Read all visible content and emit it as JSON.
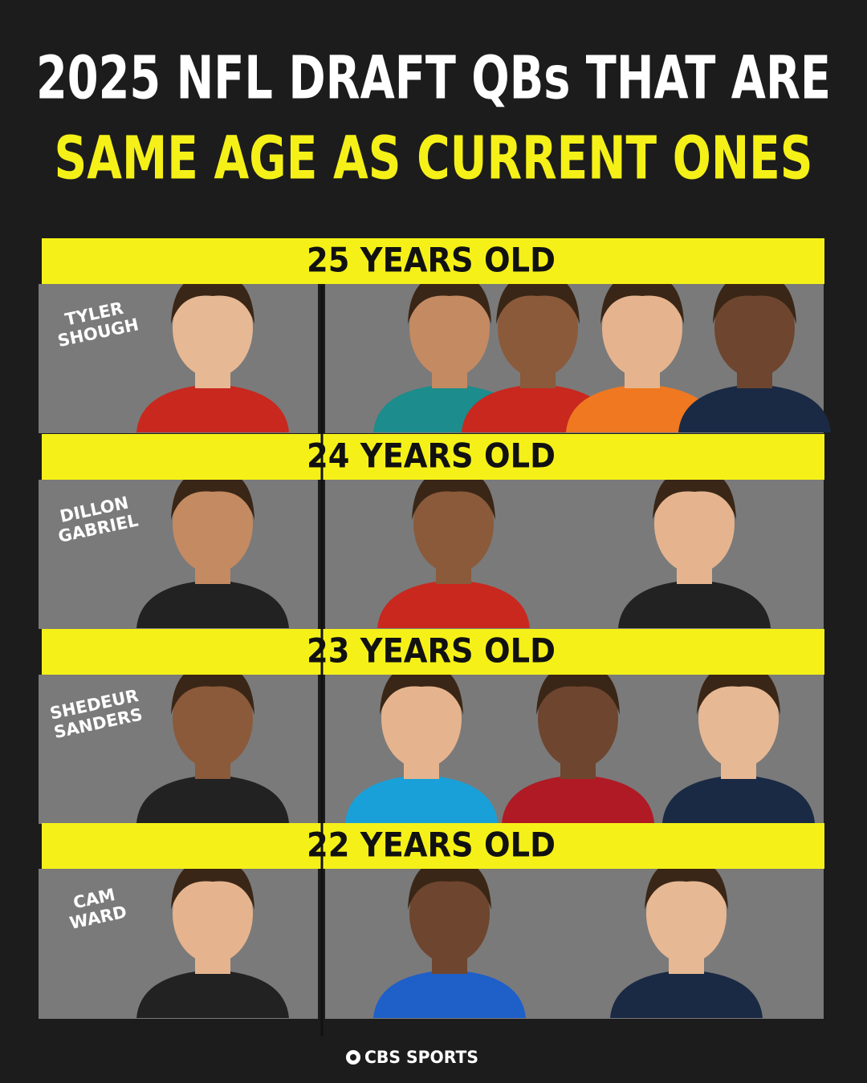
{
  "title": {
    "line1": "2025 NFL DRAFT QBs THAT ARE",
    "line2": "SAME AGE AS CURRENT ONES"
  },
  "sections": [
    {
      "age": "25 YEARS OLD",
      "prospect": [
        "TYLER",
        "SHOUGH"
      ]
    },
    {
      "age": "24 YEARS OLD",
      "prospect": [
        "DILLON",
        "GABRIEL"
      ]
    },
    {
      "age": "23 YEARS OLD",
      "prospect": [
        "SHEDEUR",
        "SANDERS"
      ]
    },
    {
      "age": "22 YEARS OLD",
      "prospect": [
        "CAM",
        "WARD"
      ]
    }
  ],
  "footer": {
    "brand": "CBS SPORTS"
  }
}
